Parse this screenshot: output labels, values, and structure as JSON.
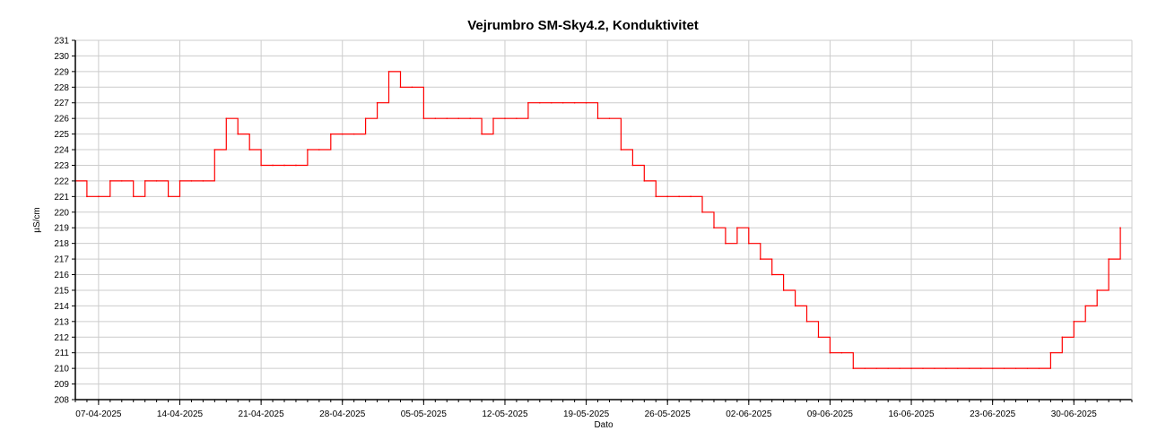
{
  "chart_data": {
    "type": "line",
    "title": "Vejrumbro SM-Sky4.2, Konduktivitet",
    "xlabel": "Dato",
    "ylabel": "µS/cm",
    "ylim": [
      208,
      231
    ],
    "xlim": [
      "2025-04-05",
      "2025-07-05"
    ],
    "y_ticks": [
      208,
      209,
      210,
      211,
      212,
      213,
      214,
      215,
      216,
      217,
      218,
      219,
      220,
      221,
      222,
      223,
      224,
      225,
      226,
      227,
      228,
      229,
      230,
      231
    ],
    "x_ticks": [
      "07-04-2025",
      "14-04-2025",
      "21-04-2025",
      "28-04-2025",
      "05-05-2025",
      "12-05-2025",
      "19-05-2025",
      "26-05-2025",
      "02-06-2025",
      "09-06-2025",
      "16-06-2025",
      "23-06-2025",
      "30-06-2025"
    ],
    "grid": true,
    "series": [
      {
        "color": "#ff0000",
        "x": [
          "2025-04-05",
          "2025-04-06",
          "2025-04-07",
          "2025-04-08",
          "2025-04-09",
          "2025-04-10",
          "2025-04-11",
          "2025-04-12",
          "2025-04-13",
          "2025-04-14",
          "2025-04-15",
          "2025-04-16",
          "2025-04-17",
          "2025-04-18",
          "2025-04-19",
          "2025-04-20",
          "2025-04-21",
          "2025-04-22",
          "2025-04-23",
          "2025-04-24",
          "2025-04-25",
          "2025-04-26",
          "2025-04-27",
          "2025-04-28",
          "2025-04-29",
          "2025-04-30",
          "2025-05-01",
          "2025-05-02",
          "2025-05-03",
          "2025-05-04",
          "2025-05-05",
          "2025-05-06",
          "2025-05-07",
          "2025-05-08",
          "2025-05-09",
          "2025-05-10",
          "2025-05-11",
          "2025-05-12",
          "2025-05-13",
          "2025-05-14",
          "2025-05-15",
          "2025-05-16",
          "2025-05-17",
          "2025-05-18",
          "2025-05-19",
          "2025-05-20",
          "2025-05-21",
          "2025-05-22",
          "2025-05-23",
          "2025-05-24",
          "2025-05-25",
          "2025-05-26",
          "2025-05-27",
          "2025-05-28",
          "2025-05-29",
          "2025-05-30",
          "2025-05-31",
          "2025-06-01",
          "2025-06-02",
          "2025-06-03",
          "2025-06-04",
          "2025-06-05",
          "2025-06-06",
          "2025-06-07",
          "2025-06-08",
          "2025-06-09",
          "2025-06-10",
          "2025-06-11",
          "2025-06-12",
          "2025-06-13",
          "2025-06-14",
          "2025-06-15",
          "2025-06-16",
          "2025-06-17",
          "2025-06-18",
          "2025-06-19",
          "2025-06-20",
          "2025-06-21",
          "2025-06-22",
          "2025-06-23",
          "2025-06-24",
          "2025-06-25",
          "2025-06-26",
          "2025-06-27",
          "2025-06-28",
          "2025-06-29",
          "2025-06-30",
          "2025-07-01",
          "2025-07-02",
          "2025-07-03",
          "2025-07-04"
        ],
        "values": [
          222,
          221,
          221,
          222,
          222,
          221,
          222,
          222,
          221,
          222,
          222,
          222,
          224,
          226,
          225,
          224,
          223,
          223,
          223,
          223,
          224,
          224,
          225,
          225,
          225,
          226,
          227,
          229,
          228,
          228,
          226,
          226,
          226,
          226,
          226,
          225,
          226,
          226,
          226,
          227,
          227,
          227,
          227,
          227,
          227,
          226,
          226,
          224,
          223,
          222,
          221,
          221,
          221,
          221,
          220,
          219,
          218,
          219,
          218,
          217,
          216,
          215,
          214,
          213,
          212,
          211,
          211,
          210,
          210,
          210,
          210,
          210,
          210,
          210,
          210,
          210,
          210,
          210,
          210,
          210,
          210,
          210,
          210,
          210,
          211,
          212,
          213,
          214,
          215,
          217,
          219
        ]
      }
    ]
  }
}
